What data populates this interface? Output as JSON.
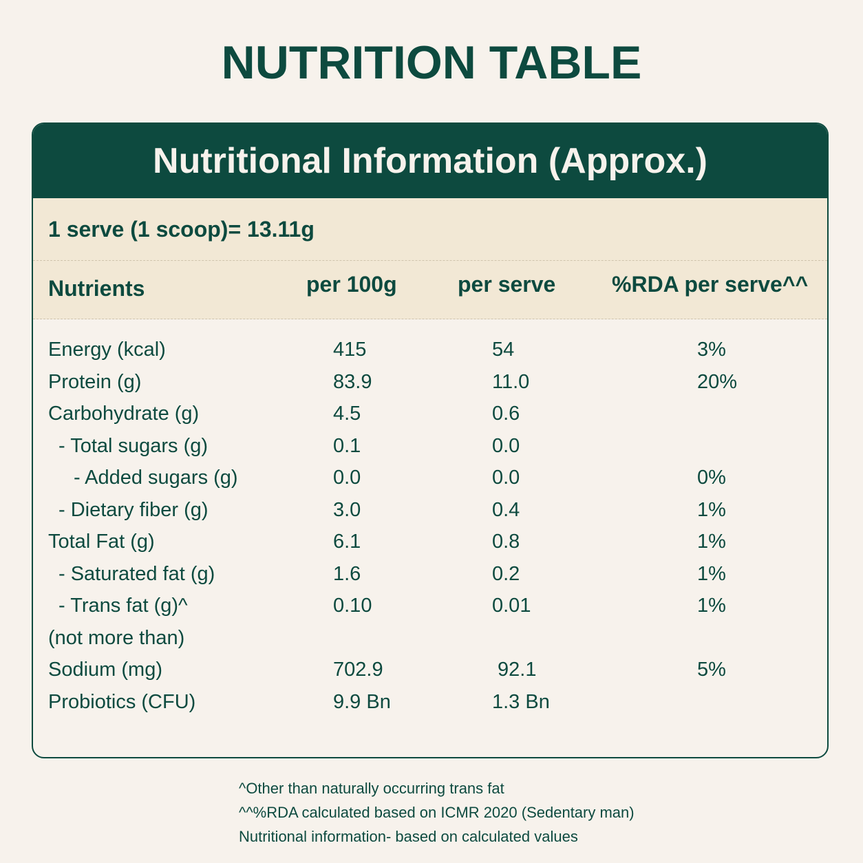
{
  "page_title": "NUTRITION TABLE",
  "card": {
    "header": "Nutritional Information (Approx.)",
    "serving": "1 serve (1 scoop)= 13.11g",
    "columns": [
      "Nutrients",
      "per 100g",
      "per serve",
      "%RDA per serve^^"
    ],
    "rows": [
      {
        "name": "Energy (kcal)",
        "per100": "415",
        "perserve": "54",
        "rda": "3%"
      },
      {
        "name": "Protein (g)",
        "per100": "83.9",
        "perserve": "11.0",
        "rda": "20%"
      },
      {
        "name": "Carbohydrate (g)",
        "per100": "4.5",
        "perserve": "0.6",
        "rda": ""
      },
      {
        "name": "- Total sugars (g)",
        "per100": "0.1",
        "perserve": "0.0",
        "rda": ""
      },
      {
        "name": "- Added sugars (g)",
        "per100": "0.0",
        "perserve": "0.0",
        "rda": "0%"
      },
      {
        "name": "- Dietary fiber (g)",
        "per100": "3.0",
        "perserve": "0.4",
        "rda": "1%"
      },
      {
        "name": "Total Fat (g)",
        "per100": "6.1",
        "perserve": "0.8",
        "rda": "1%"
      },
      {
        "name": "- Saturated fat (g)",
        "per100": "1.6",
        "perserve": "0.2",
        "rda": "1%"
      },
      {
        "name": "- Trans fat (g)^",
        "per100": "0.10",
        "perserve": "0.01",
        "rda": "1%"
      },
      {
        "name": "(not more than)",
        "per100": "",
        "perserve": "",
        "rda": ""
      },
      {
        "name": "Sodium (mg)",
        "per100": "702.9",
        "perserve": "92.1",
        "rda": "5%"
      },
      {
        "name": "Probiotics (CFU)",
        "per100": "9.9 Bn",
        "perserve": "1.3 Bn",
        "rda": ""
      }
    ]
  },
  "footnotes": [
    "^Other than naturally occurring trans fat",
    "^^%RDA calculated based on ICMR 2020 (Sedentary man)",
    "Nutritional information- based on calculated values"
  ],
  "colors": {
    "brand_green": "#0d4a3f",
    "band_beige": "#f2e8d5",
    "background": "#f7f2ec"
  }
}
